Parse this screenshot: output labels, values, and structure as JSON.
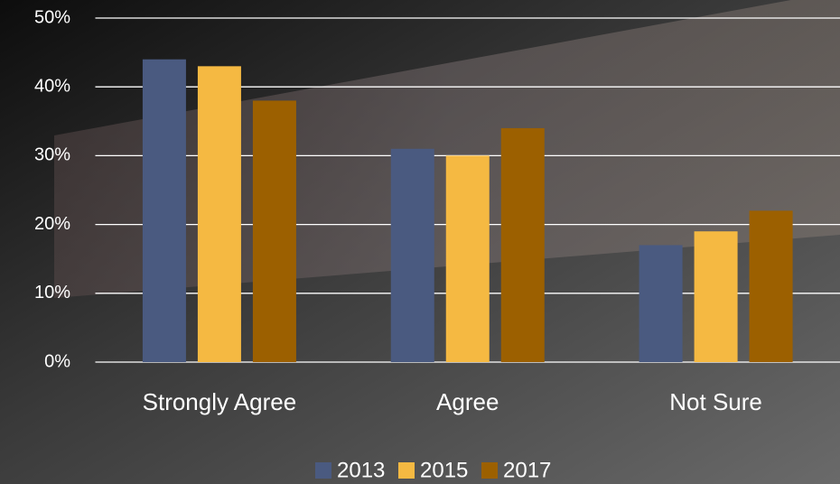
{
  "chart_data": {
    "type": "bar",
    "categories": [
      "Strongly Agree",
      "Agree",
      "Not Sure"
    ],
    "series": [
      {
        "name": "2013",
        "color": "#4a5a80",
        "values": [
          44,
          31,
          17
        ]
      },
      {
        "name": "2015",
        "color": "#f5b942",
        "values": [
          43,
          30,
          19
        ]
      },
      {
        "name": "2017",
        "color": "#9c6000",
        "values": [
          38,
          34,
          22
        ]
      }
    ],
    "ylim": [
      0,
      50
    ],
    "yticks": [
      {
        "value": 0,
        "label": "0%"
      },
      {
        "value": 10,
        "label": "10%"
      },
      {
        "value": 20,
        "label": "20%"
      },
      {
        "value": 30,
        "label": "30%"
      },
      {
        "value": 40,
        "label": "40%"
      },
      {
        "value": 50,
        "label": "50%"
      }
    ],
    "grid": true,
    "legend": "bottom"
  }
}
